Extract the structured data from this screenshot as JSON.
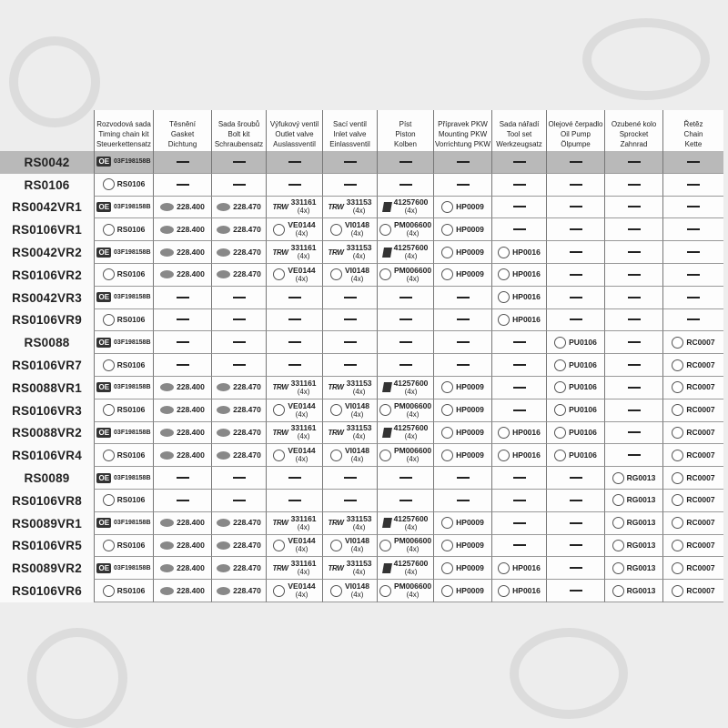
{
  "table": {
    "columns": [
      [
        "Rozvodová sada",
        "Timing chain kit",
        "Steuerkettensatz"
      ],
      [
        "Těsnění",
        "Gasket",
        "Dichtung"
      ],
      [
        "Sada šroubů",
        "Bolt kit",
        "Schraubensatz"
      ],
      [
        "Výfukový ventil",
        "Outlet valve",
        "Auslassventil"
      ],
      [
        "Sací ventil",
        "Inlet valve",
        "Einlassventil"
      ],
      [
        "Píst",
        "Piston",
        "Kolben"
      ],
      [
        "Přípravek PKW",
        "Mounting PKW",
        "Vorrichtung PKW"
      ],
      [
        "Sada nářadí",
        "Tool set",
        "Werkzeugsatz"
      ],
      [
        "Olejové čerpadlo",
        "Oil Pump",
        "Ölpumpe"
      ],
      [
        "Ozubené kolo",
        "Sprocket",
        "Zahnrad"
      ],
      [
        "Řetěz",
        "Chain",
        "Kette"
      ]
    ],
    "highlight_row": 0,
    "rows": [
      {
        "name": "RS0042",
        "cells": [
          {
            "brand": "OE",
            "part": "03F198158B"
          },
          null,
          null,
          null,
          null,
          null,
          null,
          null,
          null,
          null,
          null
        ]
      },
      {
        "name": "RS0106",
        "cells": [
          {
            "brand": "ET",
            "part": "RS0106"
          },
          null,
          null,
          null,
          null,
          null,
          null,
          null,
          null,
          null,
          null
        ]
      },
      {
        "name": "RS0042VR1",
        "cells": [
          {
            "brand": "OE",
            "part": "03F198158B"
          },
          {
            "brand": "elring",
            "part": "228.400"
          },
          {
            "brand": "elring",
            "part": "228.470"
          },
          {
            "brand": "TRW",
            "part": "331161",
            "qty": "(4x)"
          },
          {
            "brand": "TRW",
            "part": "331153",
            "qty": "(4x)"
          },
          {
            "brand": "KS",
            "part": "41257600",
            "qty": "(4x)"
          },
          {
            "brand": "ET",
            "part": "HP0009"
          },
          null,
          null,
          null,
          null
        ]
      },
      {
        "name": "RS0106VR1",
        "cells": [
          {
            "brand": "ET",
            "part": "RS0106"
          },
          {
            "brand": "elring",
            "part": "228.400"
          },
          {
            "brand": "elring",
            "part": "228.470"
          },
          {
            "brand": "ET",
            "part": "VE0144",
            "qty": "(4x)"
          },
          {
            "brand": "ET",
            "part": "VI0148",
            "qty": "(4x)"
          },
          {
            "brand": "ET",
            "part": "PM006600",
            "qty": "(4x)"
          },
          {
            "brand": "ET",
            "part": "HP0009"
          },
          null,
          null,
          null,
          null
        ]
      },
      {
        "name": "RS0042VR2",
        "cells": [
          {
            "brand": "OE",
            "part": "03F198158B"
          },
          {
            "brand": "elring",
            "part": "228.400"
          },
          {
            "brand": "elring",
            "part": "228.470"
          },
          {
            "brand": "TRW",
            "part": "331161",
            "qty": "(4x)"
          },
          {
            "brand": "TRW",
            "part": "331153",
            "qty": "(4x)"
          },
          {
            "brand": "KS",
            "part": "41257600",
            "qty": "(4x)"
          },
          {
            "brand": "ET",
            "part": "HP0009"
          },
          {
            "brand": "ET",
            "part": "HP0016"
          },
          null,
          null,
          null
        ]
      },
      {
        "name": "RS0106VR2",
        "cells": [
          {
            "brand": "ET",
            "part": "RS0106"
          },
          {
            "brand": "elring",
            "part": "228.400"
          },
          {
            "brand": "elring",
            "part": "228.470"
          },
          {
            "brand": "ET",
            "part": "VE0144",
            "qty": "(4x)"
          },
          {
            "brand": "ET",
            "part": "VI0148",
            "qty": "(4x)"
          },
          {
            "brand": "ET",
            "part": "PM006600",
            "qty": "(4x)"
          },
          {
            "brand": "ET",
            "part": "HP0009"
          },
          {
            "brand": "ET",
            "part": "HP0016"
          },
          null,
          null,
          null
        ]
      },
      {
        "name": "RS0042VR3",
        "cells": [
          {
            "brand": "OE",
            "part": "03F198158B"
          },
          null,
          null,
          null,
          null,
          null,
          null,
          {
            "brand": "ET",
            "part": "HP0016"
          },
          null,
          null,
          null
        ]
      },
      {
        "name": "RS0106VR9",
        "cells": [
          {
            "brand": "ET",
            "part": "RS0106"
          },
          null,
          null,
          null,
          null,
          null,
          null,
          {
            "brand": "ET",
            "part": "HP0016"
          },
          null,
          null,
          null
        ]
      },
      {
        "name": "RS0088",
        "cells": [
          {
            "brand": "OE",
            "part": "03F198158B"
          },
          null,
          null,
          null,
          null,
          null,
          null,
          null,
          {
            "brand": "ET",
            "part": "PU0106"
          },
          null,
          {
            "brand": "ET",
            "part": "RC0007"
          }
        ]
      },
      {
        "name": "RS0106VR7",
        "cells": [
          {
            "brand": "ET",
            "part": "RS0106"
          },
          null,
          null,
          null,
          null,
          null,
          null,
          null,
          {
            "brand": "ET",
            "part": "PU0106"
          },
          null,
          {
            "brand": "ET",
            "part": "RC0007"
          }
        ]
      },
      {
        "name": "RS0088VR1",
        "cells": [
          {
            "brand": "OE",
            "part": "03F198158B"
          },
          {
            "brand": "elring",
            "part": "228.400"
          },
          {
            "brand": "elring",
            "part": "228.470"
          },
          {
            "brand": "TRW",
            "part": "331161",
            "qty": "(4x)"
          },
          {
            "brand": "TRW",
            "part": "331153",
            "qty": "(4x)"
          },
          {
            "brand": "KS",
            "part": "41257600",
            "qty": "(4x)"
          },
          {
            "brand": "ET",
            "part": "HP0009"
          },
          null,
          {
            "brand": "ET",
            "part": "PU0106"
          },
          null,
          {
            "brand": "ET",
            "part": "RC0007"
          }
        ]
      },
      {
        "name": "RS0106VR3",
        "cells": [
          {
            "brand": "ET",
            "part": "RS0106"
          },
          {
            "brand": "elring",
            "part": "228.400"
          },
          {
            "brand": "elring",
            "part": "228.470"
          },
          {
            "brand": "ET",
            "part": "VE0144",
            "qty": "(4x)"
          },
          {
            "brand": "ET",
            "part": "VI0148",
            "qty": "(4x)"
          },
          {
            "brand": "ET",
            "part": "PM006600",
            "qty": "(4x)"
          },
          {
            "brand": "ET",
            "part": "HP0009"
          },
          null,
          {
            "brand": "ET",
            "part": "PU0106"
          },
          null,
          {
            "brand": "ET",
            "part": "RC0007"
          }
        ]
      },
      {
        "name": "RS0088VR2",
        "cells": [
          {
            "brand": "OE",
            "part": "03F198158B"
          },
          {
            "brand": "elring",
            "part": "228.400"
          },
          {
            "brand": "elring",
            "part": "228.470"
          },
          {
            "brand": "TRW",
            "part": "331161",
            "qty": "(4x)"
          },
          {
            "brand": "TRW",
            "part": "331153",
            "qty": "(4x)"
          },
          {
            "brand": "KS",
            "part": "41257600",
            "qty": "(4x)"
          },
          {
            "brand": "ET",
            "part": "HP0009"
          },
          {
            "brand": "ET",
            "part": "HP0016"
          },
          {
            "brand": "ET",
            "part": "PU0106"
          },
          null,
          {
            "brand": "ET",
            "part": "RC0007"
          }
        ]
      },
      {
        "name": "RS0106VR4",
        "cells": [
          {
            "brand": "ET",
            "part": "RS0106"
          },
          {
            "brand": "elring",
            "part": "228.400"
          },
          {
            "brand": "elring",
            "part": "228.470"
          },
          {
            "brand": "ET",
            "part": "VE0144",
            "qty": "(4x)"
          },
          {
            "brand": "ET",
            "part": "VI0148",
            "qty": "(4x)"
          },
          {
            "brand": "ET",
            "part": "PM006600",
            "qty": "(4x)"
          },
          {
            "brand": "ET",
            "part": "HP0009"
          },
          {
            "brand": "ET",
            "part": "HP0016"
          },
          {
            "brand": "ET",
            "part": "PU0106"
          },
          null,
          {
            "brand": "ET",
            "part": "RC0007"
          }
        ]
      },
      {
        "name": "RS0089",
        "cells": [
          {
            "brand": "OE",
            "part": "03F198158B"
          },
          null,
          null,
          null,
          null,
          null,
          null,
          null,
          null,
          {
            "brand": "ET",
            "part": "RG0013"
          },
          {
            "brand": "ET",
            "part": "RC0007"
          }
        ]
      },
      {
        "name": "RS0106VR8",
        "cells": [
          {
            "brand": "ET",
            "part": "RS0106"
          },
          null,
          null,
          null,
          null,
          null,
          null,
          null,
          null,
          {
            "brand": "ET",
            "part": "RG0013"
          },
          {
            "brand": "ET",
            "part": "RC0007"
          }
        ]
      },
      {
        "name": "RS0089VR1",
        "cells": [
          {
            "brand": "OE",
            "part": "03F198158B"
          },
          {
            "brand": "elring",
            "part": "228.400"
          },
          {
            "brand": "elring",
            "part": "228.470"
          },
          {
            "brand": "TRW",
            "part": "331161",
            "qty": "(4x)"
          },
          {
            "brand": "TRW",
            "part": "331153",
            "qty": "(4x)"
          },
          {
            "brand": "KS",
            "part": "41257600",
            "qty": "(4x)"
          },
          {
            "brand": "ET",
            "part": "HP0009"
          },
          null,
          null,
          {
            "brand": "ET",
            "part": "RG0013"
          },
          {
            "brand": "ET",
            "part": "RC0007"
          }
        ]
      },
      {
        "name": "RS0106VR5",
        "cells": [
          {
            "brand": "ET",
            "part": "RS0106"
          },
          {
            "brand": "elring",
            "part": "228.400"
          },
          {
            "brand": "elring",
            "part": "228.470"
          },
          {
            "brand": "ET",
            "part": "VE0144",
            "qty": "(4x)"
          },
          {
            "brand": "ET",
            "part": "VI0148",
            "qty": "(4x)"
          },
          {
            "brand": "ET",
            "part": "PM006600",
            "qty": "(4x)"
          },
          {
            "brand": "ET",
            "part": "HP0009"
          },
          null,
          null,
          {
            "brand": "ET",
            "part": "RG0013"
          },
          {
            "brand": "ET",
            "part": "RC0007"
          }
        ]
      },
      {
        "name": "RS0089VR2",
        "cells": [
          {
            "brand": "OE",
            "part": "03F198158B"
          },
          {
            "brand": "elring",
            "part": "228.400"
          },
          {
            "brand": "elring",
            "part": "228.470"
          },
          {
            "brand": "TRW",
            "part": "331161",
            "qty": "(4x)"
          },
          {
            "brand": "TRW",
            "part": "331153",
            "qty": "(4x)"
          },
          {
            "brand": "KS",
            "part": "41257600",
            "qty": "(4x)"
          },
          {
            "brand": "ET",
            "part": "HP0009"
          },
          {
            "brand": "ET",
            "part": "HP0016"
          },
          null,
          {
            "brand": "ET",
            "part": "RG0013"
          },
          {
            "brand": "ET",
            "part": "RC0007"
          }
        ]
      },
      {
        "name": "RS0106VR6",
        "cells": [
          {
            "brand": "ET",
            "part": "RS0106"
          },
          {
            "brand": "elring",
            "part": "228.400"
          },
          {
            "brand": "elring",
            "part": "228.470"
          },
          {
            "brand": "ET",
            "part": "VE0144",
            "qty": "(4x)"
          },
          {
            "brand": "ET",
            "part": "VI0148",
            "qty": "(4x)"
          },
          {
            "brand": "ET",
            "part": "PM006600",
            "qty": "(4x)"
          },
          {
            "brand": "ET",
            "part": "HP0009"
          },
          {
            "brand": "ET",
            "part": "HP0016"
          },
          null,
          {
            "brand": "ET",
            "part": "RG0013"
          },
          {
            "brand": "ET",
            "part": "RC0007"
          }
        ]
      }
    ]
  }
}
